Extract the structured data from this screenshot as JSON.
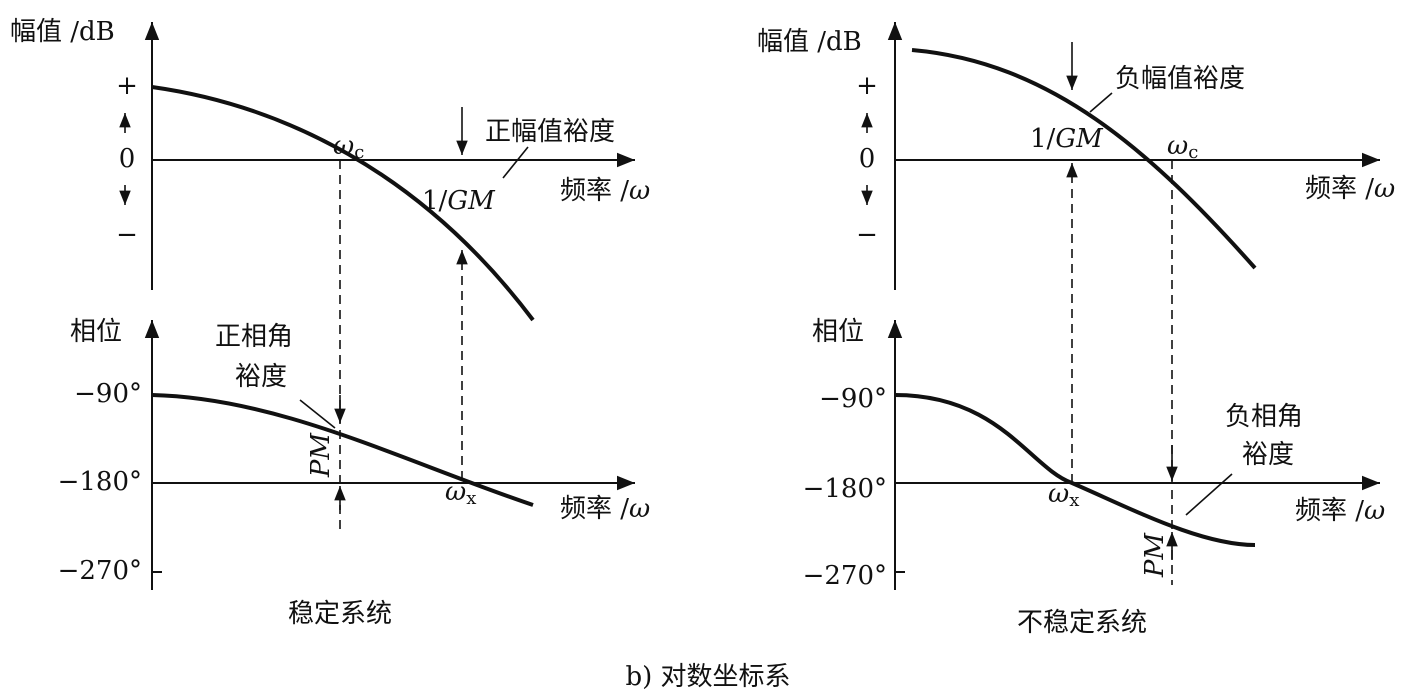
{
  "panels": [
    {
      "magnitude": {
        "axis_label": "幅值 /dB",
        "ticks": [
          "+",
          "0",
          "−"
        ],
        "crossover": {
          "symbol": "ω",
          "subscript": "c"
        },
        "margin_label": "正幅值裕度",
        "gm": {
          "prefix": "1/",
          "symbol": "GM"
        },
        "freq_label": {
          "text": "频率 /",
          "symbol": "ω"
        }
      },
      "phase": {
        "axis_label": "相位",
        "ticks": [
          "−90°",
          "−180°",
          "−270°"
        ],
        "margin_label": [
          "正相角",
          "裕度"
        ],
        "pm": "PM",
        "crossover": {
          "symbol": "ω",
          "subscript": "x"
        },
        "freq_label": {
          "text": "频率 /",
          "symbol": "ω"
        }
      },
      "caption": "稳定系统"
    },
    {
      "magnitude": {
        "axis_label": "幅值 /dB",
        "ticks": [
          "+",
          "0",
          "−"
        ],
        "crossover": {
          "symbol": "ω",
          "subscript": "c"
        },
        "margin_label": "负幅值裕度",
        "gm": {
          "prefix": "1/",
          "symbol": "GM"
        },
        "freq_label": {
          "text": "频率 /",
          "symbol": "ω"
        }
      },
      "phase": {
        "axis_label": "相位",
        "ticks": [
          "−90°",
          "−180°",
          "−270°"
        ],
        "margin_label": [
          "负相角",
          "裕度"
        ],
        "pm": "PM",
        "crossover": {
          "symbol": "ω",
          "subscript": "x"
        },
        "freq_label": {
          "text": "频率 /",
          "symbol": "ω"
        }
      },
      "caption": "不稳定系统"
    }
  ],
  "caption": "b) 对数坐标系"
}
